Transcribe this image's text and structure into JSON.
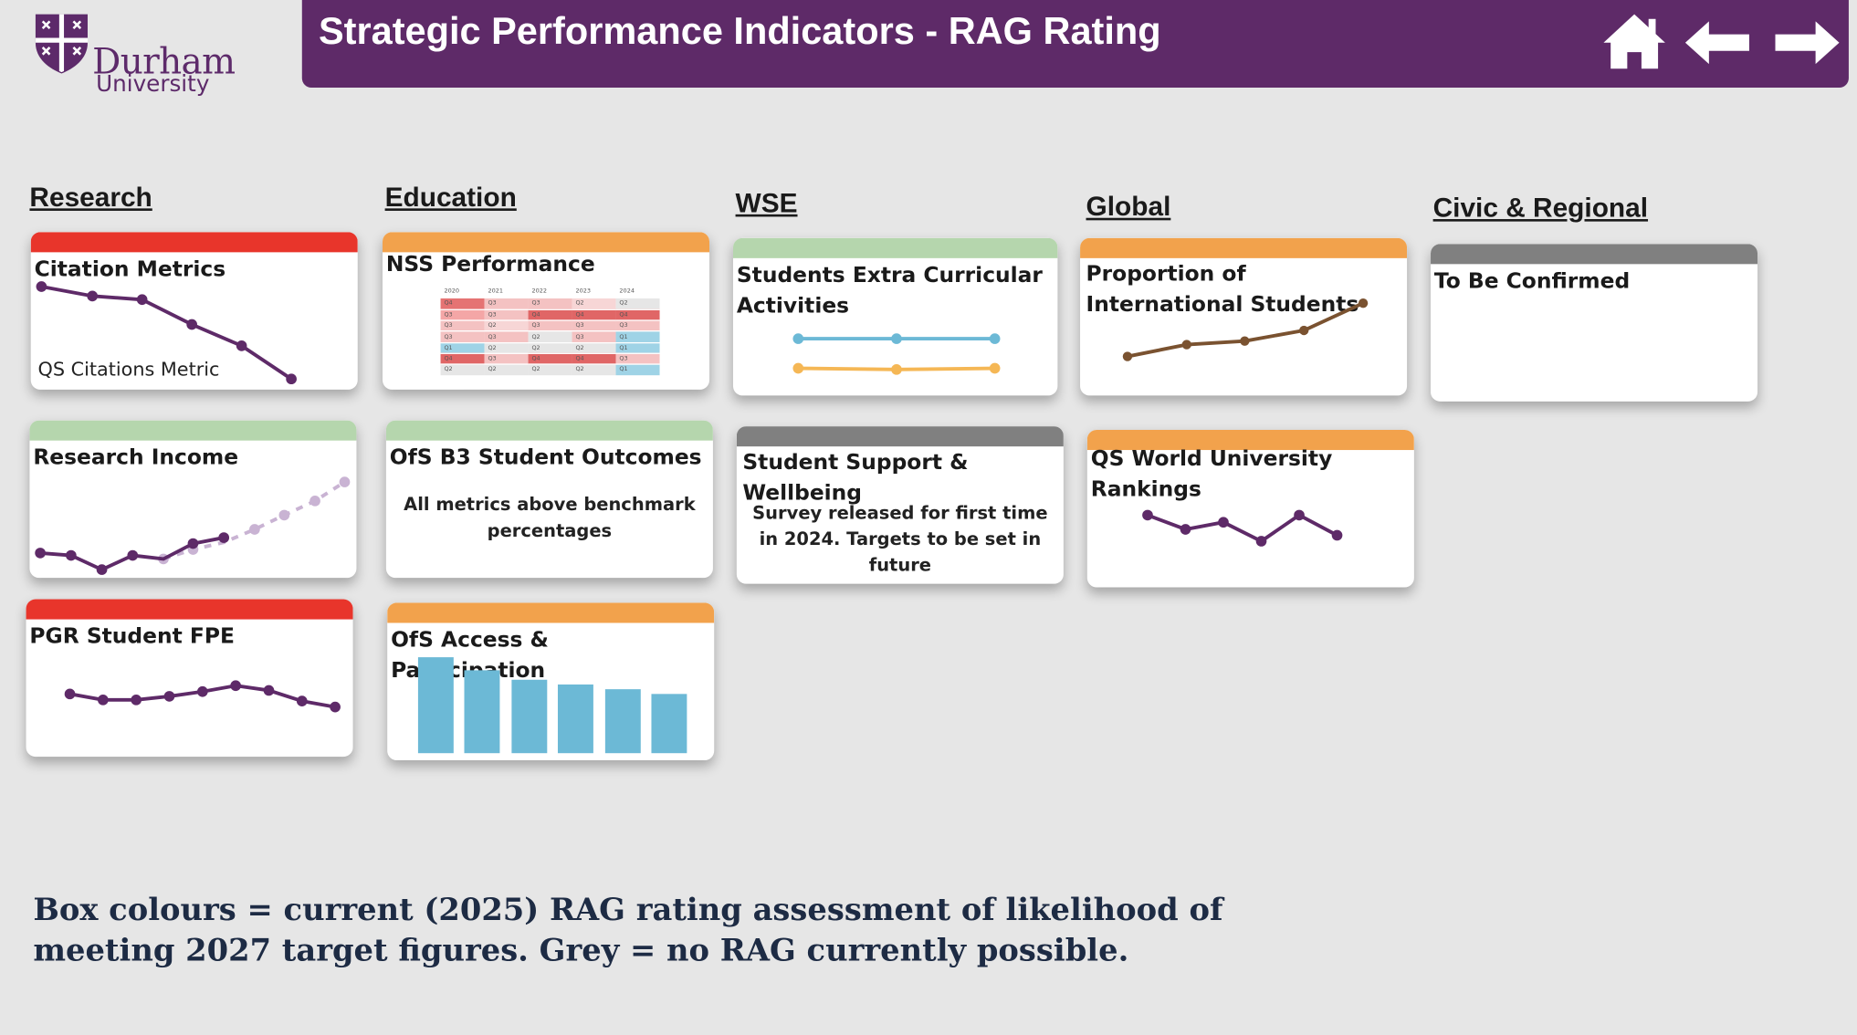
{
  "logo": {
    "name": "Durham",
    "sub": "University"
  },
  "header": {
    "title": "Strategic Performance Indicators - RAG Rating"
  },
  "nav": {
    "home": "home-icon",
    "back": "arrow-left-icon",
    "forward": "arrow-right-icon"
  },
  "colors": {
    "red": "#e8352b",
    "amber": "#f2a24c",
    "green": "#b5d6ad",
    "grey": "#808080",
    "purple": "#5e2a68",
    "blue": "#6cb9d6"
  },
  "columns": {
    "research": "Research",
    "education": "Education",
    "wse": "WSE",
    "global": "Global",
    "civic": "Civic & Regional"
  },
  "cards": {
    "citation": {
      "title": "Citation Metrics",
      "rag": "red",
      "label": "QS Citations Metric"
    },
    "research_income": {
      "title": "Research Income",
      "rag": "green"
    },
    "pgr": {
      "title": "PGR Student FPE",
      "rag": "red"
    },
    "nss": {
      "title": "NSS Performance",
      "rag": "amber"
    },
    "ofs_b3": {
      "title": "OfS B3 Student Outcomes",
      "rag": "green",
      "body": "All metrics  above benchmark percentages"
    },
    "ofs_access": {
      "title": "OfS Access & Participation",
      "rag": "amber"
    },
    "extra_curricular": {
      "title": "Students Extra Curricular Activities",
      "rag": "green"
    },
    "support": {
      "title": "Student Support & Wellbeing",
      "rag": "grey",
      "body": "Survey released for first time in 2024.  Targets to be set in future"
    },
    "international": {
      "title": "Proportion of International Students",
      "rag": "amber"
    },
    "qs_rankings": {
      "title": "QS World University Rankings",
      "rag": "amber"
    },
    "tbc": {
      "title": "To Be Confirmed",
      "rag": "grey"
    }
  },
  "nss_table": {
    "years": [
      "2020",
      "2021",
      "2022",
      "2023",
      "2024"
    ],
    "rows": [
      [
        "Q4",
        "Q3",
        "Q3",
        "Q2",
        "Q2"
      ],
      [
        "Q3",
        "Q3",
        "Q4",
        "Q4",
        "Q4"
      ],
      [
        "Q3",
        "Q2",
        "Q3",
        "Q3",
        "Q3"
      ],
      [
        "Q3",
        "Q3",
        "Q2",
        "Q3",
        "Q1"
      ],
      [
        "Q1",
        "Q2",
        "Q2",
        "Q2",
        "Q1"
      ],
      [
        "Q4",
        "Q3",
        "Q4",
        "Q4",
        "Q3"
      ],
      [
        "Q2",
        "Q2",
        "Q2",
        "Q2",
        "Q1"
      ]
    ],
    "shades": [
      [
        "#e57373",
        "#f4c2c2",
        "#f4c2c2",
        "#f7d6d6",
        "#e6e6e6"
      ],
      [
        "#f4a6a6",
        "#f4c2c2",
        "#e06666",
        "#e06666",
        "#e06666"
      ],
      [
        "#f4c2c2",
        "#f7d6d6",
        "#f4c2c2",
        "#f4c2c2",
        "#f4c2c2"
      ],
      [
        "#f4c2c2",
        "#f4c2c2",
        "#e6e6e6",
        "#f4c2c2",
        "#9fd3e6"
      ],
      [
        "#9fd3e6",
        "#e6e6e6",
        "#e6e6e6",
        "#e6e6e6",
        "#9fd3e6"
      ],
      [
        "#e06666",
        "#f4c2c2",
        "#e06666",
        "#e06666",
        "#f4c2c2"
      ],
      [
        "#e6e6e6",
        "#e6e6e6",
        "#e6e6e6",
        "#e6e6e6",
        "#9fd3e6"
      ]
    ]
  },
  "footnote": "Box colours = current (2025) RAG rating assessment of likelihood of meeting 2027 target figures.  Grey = no RAG currently possible."
}
